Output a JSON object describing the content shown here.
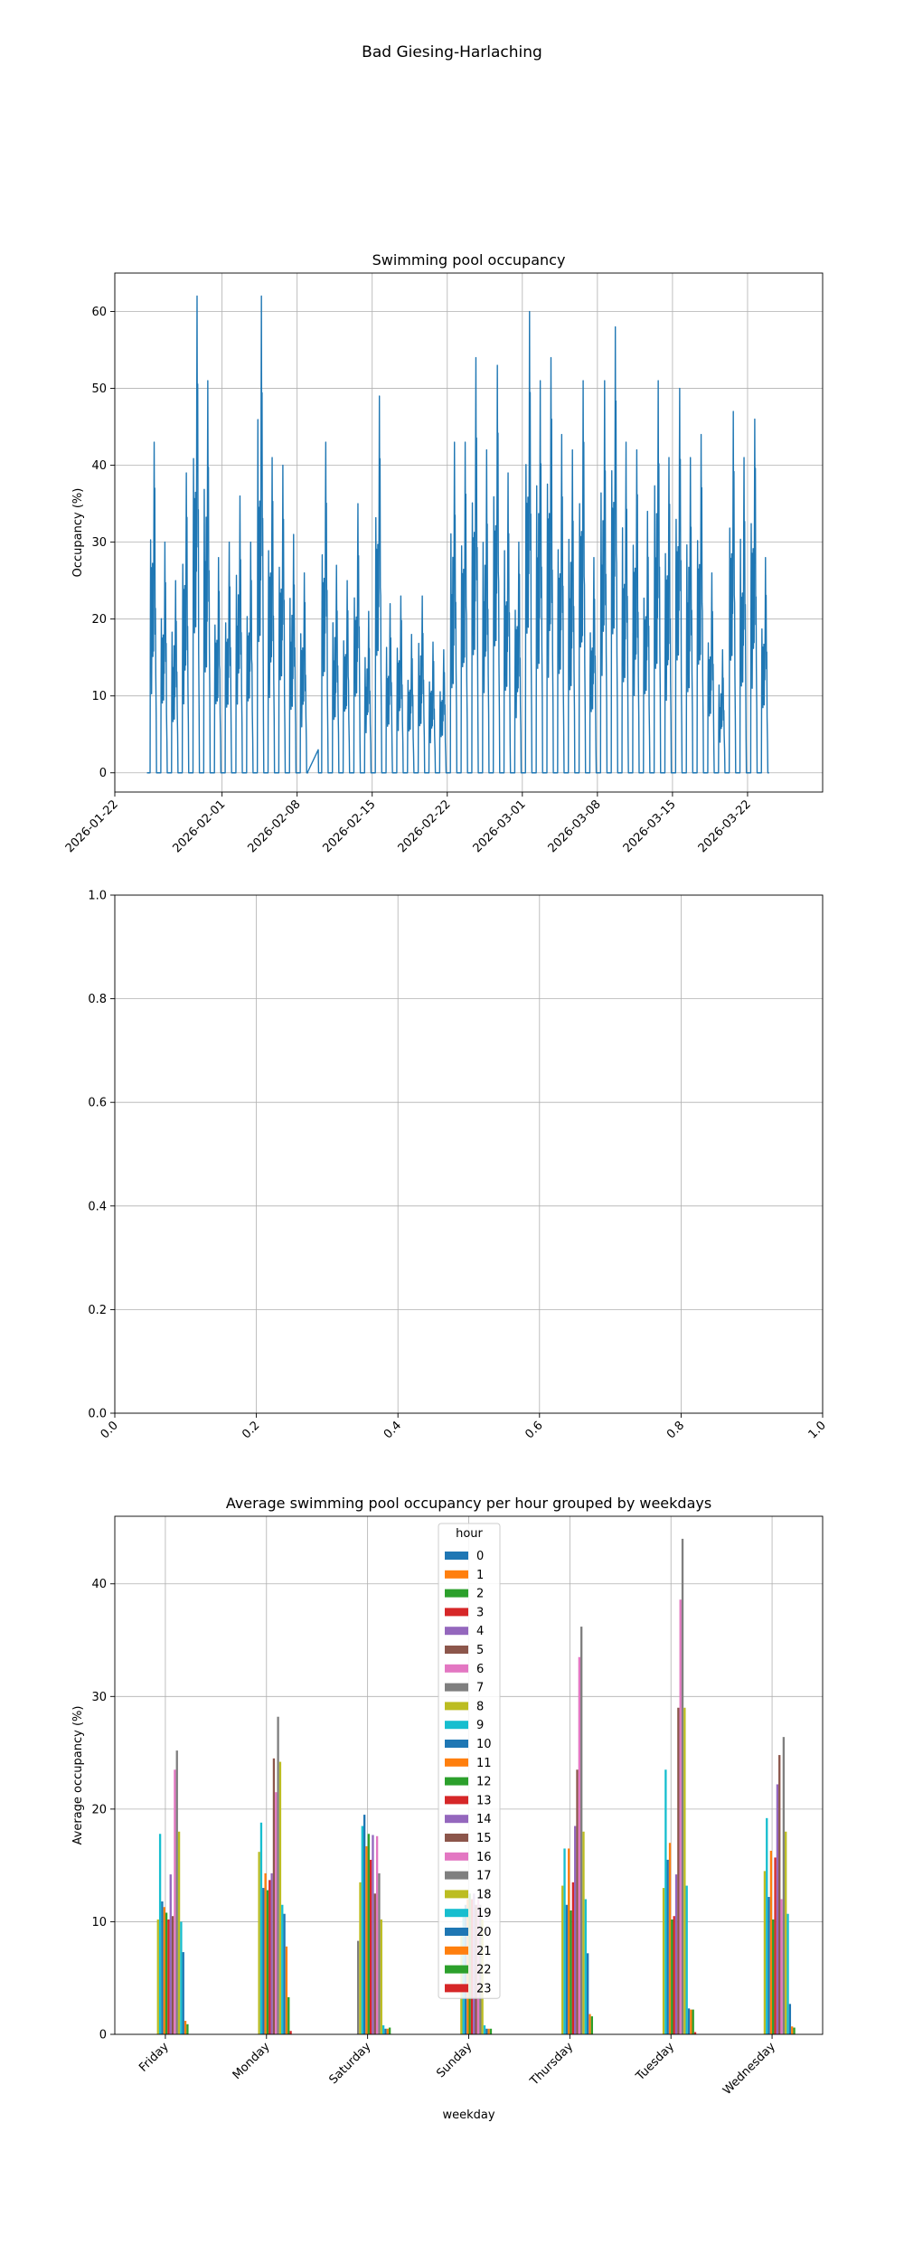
{
  "figure_title": "Bad Giesing-Harlaching",
  "chart_data": [
    {
      "type": "line",
      "title": "Swimming pool occupancy",
      "xlabel": "",
      "ylabel": "Occupancy (%)",
      "ylim": [
        -2.5,
        65
      ],
      "yticks": [
        0,
        10,
        20,
        30,
        40,
        50,
        60
      ],
      "xlim": [
        "2026-01-22",
        "2026-03-29"
      ],
      "xticks": [
        "2026-01-22",
        "2026-02-01",
        "2026-02-08",
        "2026-02-15",
        "2026-02-22",
        "2026-03-01",
        "2026-03-08",
        "2026-03-15",
        "2026-03-22"
      ],
      "grid": true,
      "color": "#1f77b4",
      "series": [
        {
          "name": "occupancy",
          "daily_peaks": [
            [
              "2026-01-25",
              43
            ],
            [
              "2026-01-26",
              30
            ],
            [
              "2026-01-27",
              25
            ],
            [
              "2026-01-28",
              39
            ],
            [
              "2026-01-29",
              62
            ],
            [
              "2026-01-30",
              51
            ],
            [
              "2026-01-31",
              28
            ],
            [
              "2026-02-01",
              30
            ],
            [
              "2026-02-02",
              36
            ],
            [
              "2026-02-03",
              30
            ],
            [
              "2026-02-04",
              62
            ],
            [
              "2026-02-05",
              41
            ],
            [
              "2026-02-06",
              40
            ],
            [
              "2026-02-07",
              31
            ],
            [
              "2026-02-08",
              26
            ],
            [
              "2026-02-10",
              43
            ],
            [
              "2026-02-11",
              27
            ],
            [
              "2026-02-12",
              25
            ],
            [
              "2026-02-13",
              35
            ],
            [
              "2026-02-14",
              21
            ],
            [
              "2026-02-15",
              49
            ],
            [
              "2026-02-16",
              22
            ],
            [
              "2026-02-17",
              23
            ],
            [
              "2026-02-18",
              18
            ],
            [
              "2026-02-19",
              23
            ],
            [
              "2026-02-20",
              17
            ],
            [
              "2026-02-21",
              16
            ],
            [
              "2026-02-22",
              43
            ],
            [
              "2026-02-23",
              43
            ],
            [
              "2026-02-24",
              54
            ],
            [
              "2026-02-25",
              42
            ],
            [
              "2026-02-26",
              53
            ],
            [
              "2026-02-27",
              39
            ],
            [
              "2026-02-28",
              30
            ],
            [
              "2026-03-01",
              60
            ],
            [
              "2026-03-02",
              51
            ],
            [
              "2026-03-03",
              54
            ],
            [
              "2026-03-04",
              44
            ],
            [
              "2026-03-05",
              42
            ],
            [
              "2026-03-06",
              51
            ],
            [
              "2026-03-07",
              28
            ],
            [
              "2026-03-08",
              51
            ],
            [
              "2026-03-09",
              58
            ],
            [
              "2026-03-10",
              43
            ],
            [
              "2026-03-11",
              42
            ],
            [
              "2026-03-12",
              34
            ],
            [
              "2026-03-13",
              51
            ],
            [
              "2026-03-14",
              41
            ],
            [
              "2026-03-15",
              50
            ],
            [
              "2026-03-16",
              41
            ],
            [
              "2026-03-17",
              44
            ],
            [
              "2026-03-18",
              26
            ],
            [
              "2026-03-19",
              16
            ],
            [
              "2026-03-20",
              47
            ],
            [
              "2026-03-21",
              41
            ],
            [
              "2026-03-22",
              46
            ],
            [
              "2026-03-23",
              28
            ]
          ],
          "gap": {
            "from": "2026-02-08",
            "to": "2026-02-09",
            "values": [
              0,
              3
            ]
          }
        }
      ]
    },
    {
      "type": "empty",
      "title": "",
      "xlim": [
        0.0,
        1.0
      ],
      "ylim": [
        0.0,
        1.0
      ],
      "xticks": [
        "0.0",
        "0.2",
        "0.4",
        "0.6",
        "0.8",
        "1.0"
      ],
      "yticks": [
        "0.0",
        "0.2",
        "0.4",
        "0.6",
        "0.8",
        "1.0"
      ],
      "grid": true
    },
    {
      "type": "bar",
      "title": "Average swimming pool occupancy per hour grouped by weekdays",
      "xlabel": "weekday",
      "ylabel": "Average occupancy (%)",
      "ylim": [
        0,
        46
      ],
      "yticks": [
        0,
        10,
        20,
        30,
        40
      ],
      "grid": true,
      "categories": [
        "Friday",
        "Monday",
        "Saturday",
        "Sunday",
        "Thursday",
        "Tuesday",
        "Wednesday"
      ],
      "legend": {
        "title": "hour",
        "placement": "upper-center"
      },
      "series": [
        {
          "name": "0",
          "color": "#1f77b4",
          "values": [
            0,
            0,
            0,
            0,
            0,
            0,
            0
          ]
        },
        {
          "name": "1",
          "color": "#ff7f0e",
          "values": [
            0,
            0,
            0,
            0,
            0,
            0,
            0
          ]
        },
        {
          "name": "2",
          "color": "#2ca02c",
          "values": [
            0,
            0,
            0,
            0,
            0,
            0,
            0
          ]
        },
        {
          "name": "3",
          "color": "#d62728",
          "values": [
            0,
            0,
            0,
            0,
            0,
            0,
            0
          ]
        },
        {
          "name": "4",
          "color": "#9467bd",
          "values": [
            0,
            0,
            0,
            0,
            0,
            0,
            0
          ]
        },
        {
          "name": "5",
          "color": "#8c564b",
          "values": [
            0,
            0,
            0,
            0,
            0,
            0,
            0
          ]
        },
        {
          "name": "6",
          "color": "#e377c2",
          "values": [
            0,
            0,
            0,
            0,
            0,
            0,
            0
          ]
        },
        {
          "name": "7",
          "color": "#7f7f7f",
          "values": [
            0,
            0,
            8.3,
            0,
            0,
            0,
            0
          ]
        },
        {
          "name": "8",
          "color": "#bcbd22",
          "values": [
            10.2,
            16.2,
            13.5,
            9.5,
            13.2,
            13.0,
            14.5
          ]
        },
        {
          "name": "9",
          "color": "#17becf",
          "values": [
            17.8,
            18.8,
            18.5,
            10.5,
            16.5,
            23.5,
            19.2
          ]
        },
        {
          "name": "10",
          "color": "#1f77b4",
          "values": [
            11.8,
            13.0,
            19.5,
            11.5,
            11.5,
            15.5,
            12.2
          ]
        },
        {
          "name": "11",
          "color": "#ff7f0e",
          "values": [
            11.3,
            14.3,
            16.7,
            12.0,
            16.5,
            17.0,
            16.3
          ]
        },
        {
          "name": "12",
          "color": "#2ca02c",
          "values": [
            10.8,
            12.8,
            17.8,
            12.5,
            11.0,
            10.2,
            10.2
          ]
        },
        {
          "name": "13",
          "color": "#d62728",
          "values": [
            10.2,
            13.7,
            15.5,
            12.0,
            13.5,
            10.5,
            15.7
          ]
        },
        {
          "name": "14",
          "color": "#9467bd",
          "values": [
            14.2,
            14.3,
            17.7,
            12.5,
            18.5,
            14.2,
            22.2
          ]
        },
        {
          "name": "15",
          "color": "#8c564b",
          "values": [
            10.5,
            24.5,
            12.5,
            11.5,
            23.5,
            29.0,
            24.8
          ]
        },
        {
          "name": "16",
          "color": "#e377c2",
          "values": [
            23.5,
            21.5,
            17.6,
            12.0,
            33.5,
            38.6,
            12.0
          ]
        },
        {
          "name": "17",
          "color": "#7f7f7f",
          "values": [
            25.2,
            28.2,
            14.3,
            11.5,
            36.2,
            44.0,
            26.4
          ]
        },
        {
          "name": "18",
          "color": "#bcbd22",
          "values": [
            18.0,
            24.2,
            10.2,
            10.2,
            18.0,
            29.0,
            18.0
          ]
        },
        {
          "name": "19",
          "color": "#17becf",
          "values": [
            10.0,
            11.5,
            0.8,
            0.8,
            12.0,
            13.2,
            10.7
          ]
        },
        {
          "name": "20",
          "color": "#1f77b4",
          "values": [
            7.3,
            10.7,
            0.5,
            0.5,
            7.2,
            2.3,
            2.7
          ]
        },
        {
          "name": "21",
          "color": "#ff7f0e",
          "values": [
            1.2,
            7.8,
            0.5,
            0.5,
            1.8,
            2.2,
            0.7
          ]
        },
        {
          "name": "22",
          "color": "#2ca02c",
          "values": [
            0.9,
            3.3,
            0.6,
            0.5,
            1.6,
            2.2,
            0.6
          ]
        },
        {
          "name": "23",
          "color": "#d62728",
          "values": [
            0,
            0.3,
            0,
            0,
            0,
            0.2,
            0
          ]
        }
      ]
    }
  ]
}
